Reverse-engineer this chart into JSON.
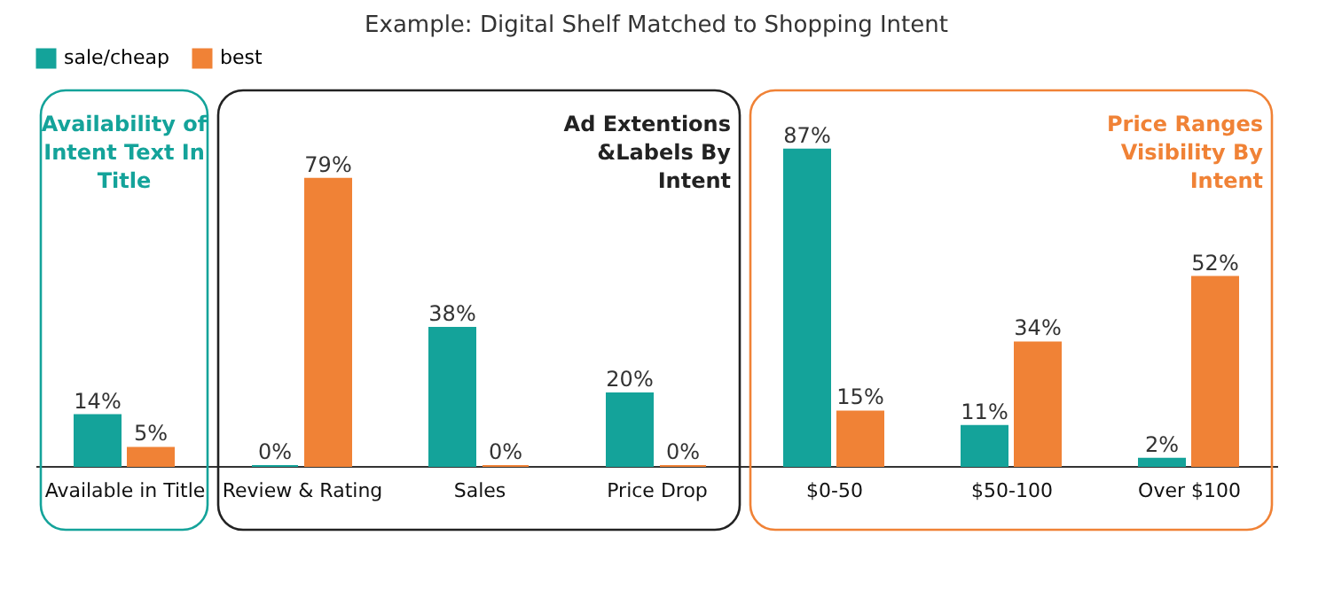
{
  "chart_data": {
    "type": "bar",
    "title": "Example: Digital Shelf Matched to Shopping Intent",
    "categories": [
      "Available in Title",
      "Review & Rating",
      "Sales",
      "Price Drop",
      "$0-50",
      "$50-100",
      "Over $100"
    ],
    "series": [
      {
        "name": "sale/cheap",
        "color": "#14a39a",
        "values": [
          14,
          0,
          38,
          20,
          87,
          11,
          2
        ],
        "value_labels": [
          "14%",
          "0%",
          "38%",
          "20%",
          "87%",
          "11%",
          "2%"
        ]
      },
      {
        "name": "best",
        "color": "#f08236",
        "values": [
          5,
          79,
          0,
          0,
          15,
          34,
          52
        ],
        "value_labels": [
          "5%",
          "79%",
          "0%",
          "0%",
          "15%",
          "34%",
          "52%"
        ]
      }
    ],
    "annotations": [
      "Availability of\nIntent Text In\nTitle",
      "Ad Extentions\n&Labels By\nIntent",
      "Price Ranges\nVisibility By\nIntent"
    ],
    "legend": "top",
    "grid": false
  }
}
